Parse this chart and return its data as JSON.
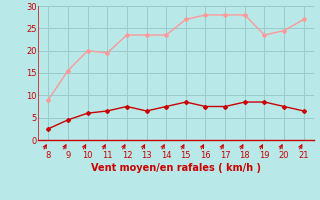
{
  "x": [
    8,
    9,
    10,
    11,
    12,
    13,
    14,
    15,
    16,
    17,
    18,
    19,
    20,
    21
  ],
  "vent_moyen": [
    2.5,
    4.5,
    6.0,
    6.5,
    7.5,
    6.5,
    7.5,
    8.5,
    7.5,
    7.5,
    8.5,
    8.5,
    7.5,
    6.5
  ],
  "rafales": [
    9.0,
    15.5,
    20.0,
    19.5,
    23.5,
    23.5,
    23.5,
    27.0,
    28.0,
    28.0,
    28.0,
    23.5,
    24.5,
    27.0
  ],
  "color_moyen": "#cc0000",
  "color_rafales": "#ff9999",
  "bg_color": "#b8e8e8",
  "grid_color": "#99cccc",
  "xlabel": "Vent moyen/en rafales ( km/h )",
  "xlabel_color": "#cc0000",
  "ylim": [
    0,
    30
  ],
  "xlim": [
    7.5,
    21.5
  ],
  "yticks": [
    0,
    5,
    10,
    15,
    20,
    25,
    30
  ],
  "xticks": [
    8,
    9,
    10,
    11,
    12,
    13,
    14,
    15,
    16,
    17,
    18,
    19,
    20,
    21
  ]
}
